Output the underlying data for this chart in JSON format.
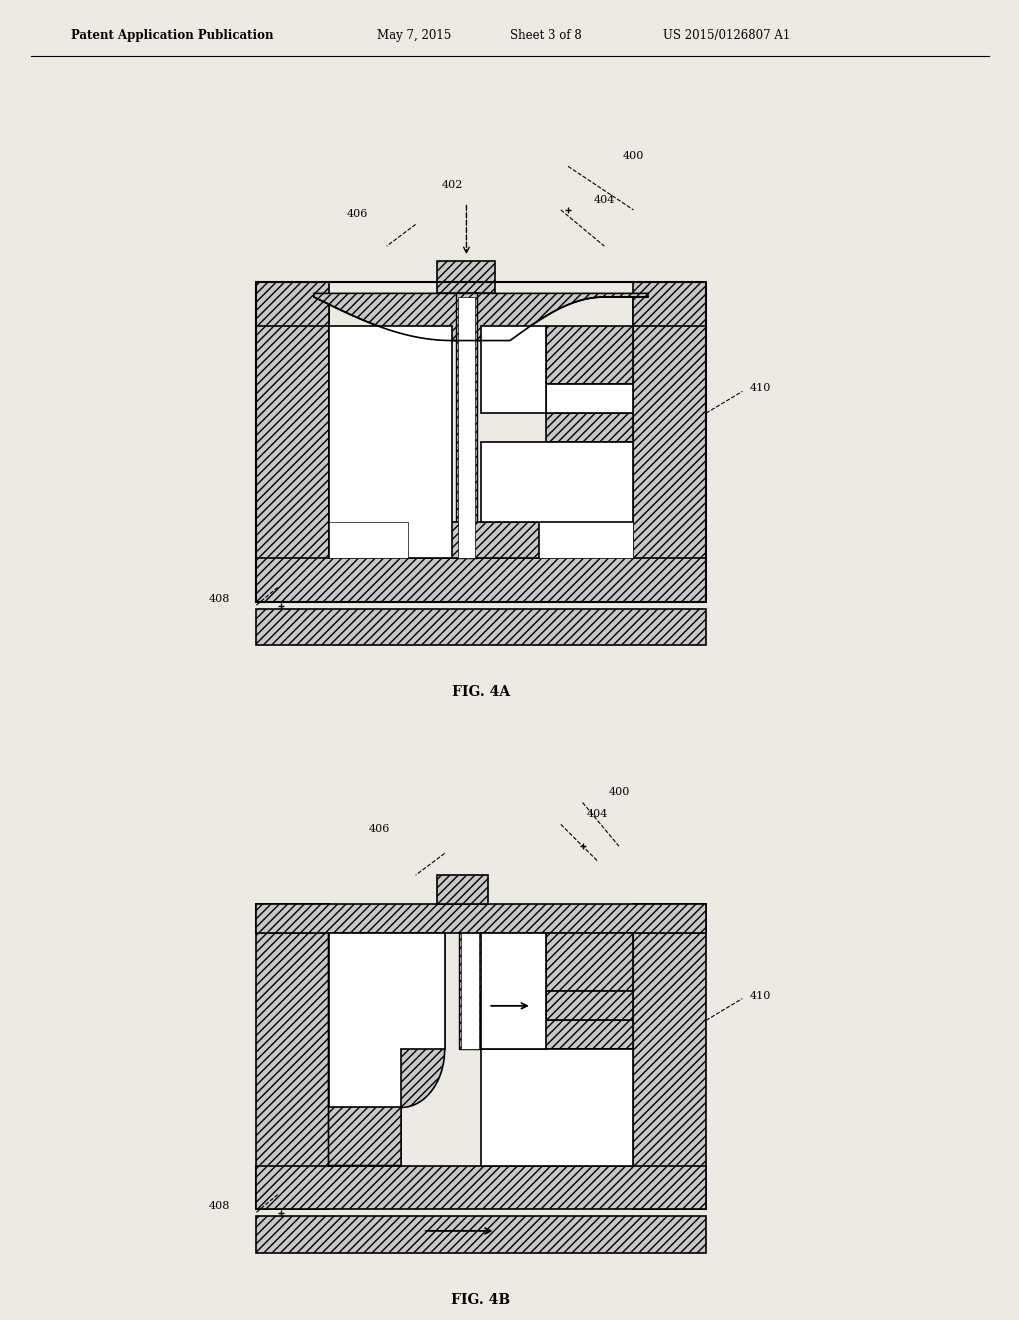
{
  "bg_color": "#ede9e3",
  "header_text": "Patent Application Publication",
  "header_date": "May 7, 2015",
  "header_sheet": "Sheet 3 of 8",
  "header_patent": "US 2015/0126807 A1",
  "fig4a_label": "FIG. 4A",
  "fig4b_label": "FIG. 4B",
  "label_400": "400",
  "label_402": "402",
  "label_404": "404",
  "label_406": "406",
  "label_408": "408",
  "label_410": "410",
  "hatch_pattern": "////",
  "line_color": "#000000",
  "fill_color": "#c8c8c8",
  "white": "#ffffff"
}
